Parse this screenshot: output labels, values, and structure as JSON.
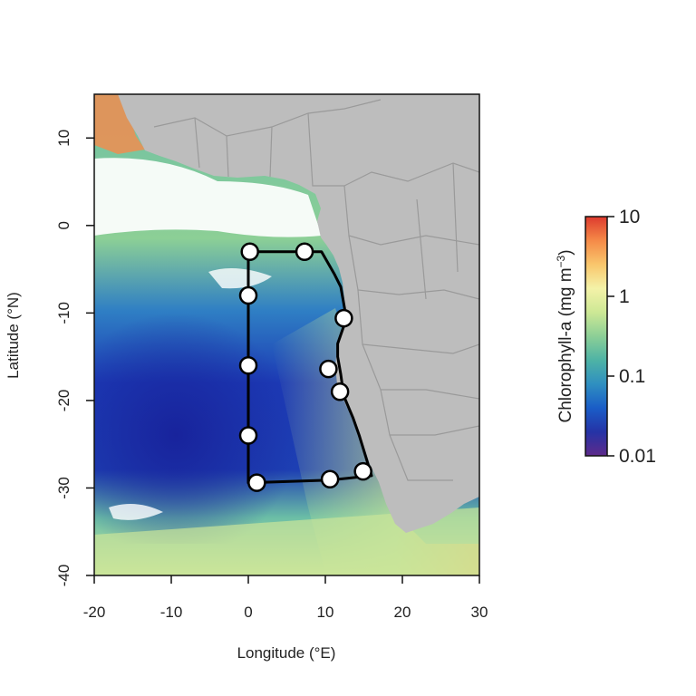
{
  "map": {
    "xlabel": "Longitude (°E)",
    "ylabel": "Latitude (°N)",
    "xlim": [
      -20,
      30
    ],
    "ylim": [
      -40,
      15
    ],
    "x_ticks": [
      {
        "value": -20,
        "label": "-20"
      },
      {
        "value": -10,
        "label": "-10"
      },
      {
        "value": 0,
        "label": "0"
      },
      {
        "value": 10,
        "label": "10"
      },
      {
        "value": 20,
        "label": "20"
      },
      {
        "value": 30,
        "label": "30"
      }
    ],
    "y_ticks": [
      {
        "value": 10,
        "label": "10"
      },
      {
        "value": 0,
        "label": "0"
      },
      {
        "value": -10,
        "label": "-10"
      },
      {
        "value": -20,
        "label": "-20"
      },
      {
        "value": -30,
        "label": "-30"
      },
      {
        "value": -40,
        "label": "-40"
      }
    ],
    "land_color": "#bdbdbd",
    "border_color": "#9a9a9a",
    "track_color": "#000000",
    "station_fill": "#ffffff",
    "stations": [
      {
        "lon": 0.2,
        "lat": -3.0
      },
      {
        "lon": 7.3,
        "lat": -3.0
      },
      {
        "lon": 0.0,
        "lat": -8.0
      },
      {
        "lon": 12.4,
        "lat": -10.6
      },
      {
        "lon": 0.0,
        "lat": -16.0
      },
      {
        "lon": 10.4,
        "lat": -16.4
      },
      {
        "lon": 11.9,
        "lat": -19.0
      },
      {
        "lon": 0.0,
        "lat": -24.0
      },
      {
        "lon": 14.9,
        "lat": -28.1
      },
      {
        "lon": 1.1,
        "lat": -29.4
      },
      {
        "lon": 10.6,
        "lat": -29.0
      }
    ],
    "track": [
      [
        0.0,
        -3.0
      ],
      [
        9.5,
        -3.0
      ],
      [
        11.2,
        -5.6
      ],
      [
        12.0,
        -7.0
      ],
      [
        12.5,
        -9.5
      ],
      [
        12.4,
        -11.5
      ],
      [
        11.6,
        -13.5
      ],
      [
        11.6,
        -15.0
      ],
      [
        12.0,
        -17.0
      ],
      [
        12.4,
        -19.5
      ],
      [
        13.6,
        -22.0
      ],
      [
        14.4,
        -24.0
      ],
      [
        15.3,
        -26.6
      ],
      [
        16.0,
        -28.6
      ],
      [
        10.6,
        -29.1
      ],
      [
        0.0,
        -29.4
      ],
      [
        0.0,
        -3.0
      ]
    ]
  },
  "colorbar": {
    "label_main": "Chlorophyll-a (mg m",
    "label_exp": "−3",
    "label_close": ")",
    "ticks": [
      {
        "value": 10,
        "label": "10"
      },
      {
        "value": 1,
        "label": "1"
      },
      {
        "value": 0.1,
        "label": "0.1"
      },
      {
        "value": 0.01,
        "label": "0.01"
      }
    ],
    "colors": [
      "#5e2a8a",
      "#2533a6",
      "#1a5dc7",
      "#2f8fc0",
      "#4eb3a5",
      "#8ccf96",
      "#cde895",
      "#f4f2a8",
      "#f9c66c",
      "#f58a48",
      "#dd3a2e"
    ]
  }
}
